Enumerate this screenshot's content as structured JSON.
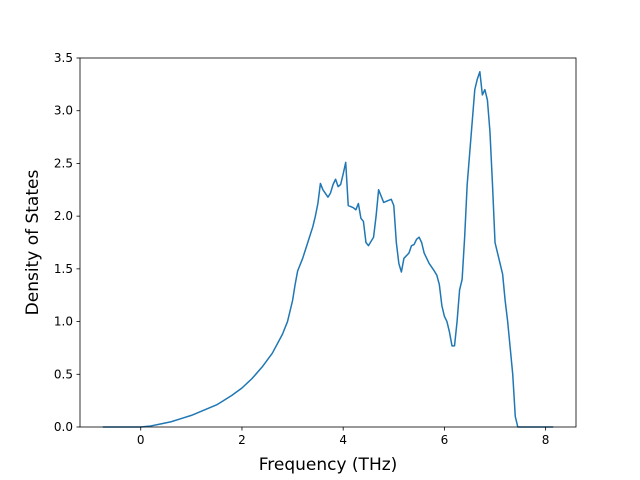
{
  "chart_data": {
    "type": "line",
    "title": "",
    "xlabel": "Frequency (THz)",
    "ylabel": "Density of States",
    "xlim": [
      -1.2,
      8.6
    ],
    "ylim": [
      0.0,
      3.5
    ],
    "xticks": [
      0,
      2,
      4,
      6,
      8
    ],
    "xtick_labels": [
      "0",
      "2",
      "4",
      "6",
      "8"
    ],
    "yticks": [
      0.0,
      0.5,
      1.0,
      1.5,
      2.0,
      2.5,
      3.0,
      3.5
    ],
    "ytick_labels": [
      "0.0",
      "0.5",
      "1.0",
      "1.5",
      "2.0",
      "2.5",
      "3.0",
      "3.5"
    ],
    "grid": false,
    "line_color": "#1f77b4",
    "series": [
      {
        "x": [
          -0.75,
          -0.5,
          -0.2,
          0.0,
          0.2,
          0.4,
          0.6,
          0.8,
          1.0,
          1.2,
          1.4,
          1.5,
          1.6,
          1.8,
          2.0,
          2.2,
          2.4,
          2.6,
          2.8,
          2.9,
          3.0,
          3.05,
          3.1,
          3.2,
          3.3,
          3.4,
          3.45,
          3.5,
          3.55,
          3.6,
          3.7,
          3.75,
          3.8,
          3.85,
          3.9,
          3.95,
          4.0,
          4.05,
          4.1,
          4.2,
          4.25,
          4.3,
          4.35,
          4.4,
          4.45,
          4.5,
          4.6,
          4.65,
          4.7,
          4.8,
          4.9,
          4.95,
          5.0,
          5.05,
          5.1,
          5.15,
          5.2,
          5.3,
          5.35,
          5.4,
          5.45,
          5.5,
          5.55,
          5.6,
          5.7,
          5.8,
          5.85,
          5.9,
          5.95,
          6.0,
          6.05,
          6.1,
          6.15,
          6.2,
          6.25,
          6.3,
          6.35,
          6.4,
          6.45,
          6.5,
          6.55,
          6.6,
          6.65,
          6.7,
          6.75,
          6.8,
          6.85,
          6.9,
          6.95,
          7.0,
          7.05,
          7.1,
          7.15,
          7.2,
          7.25,
          7.3,
          7.35,
          7.4,
          7.45,
          7.5,
          7.7,
          8.0,
          8.15
        ],
        "y": [
          0.0,
          0.0,
          0.0,
          0.0,
          0.01,
          0.03,
          0.05,
          0.08,
          0.11,
          0.15,
          0.19,
          0.21,
          0.24,
          0.3,
          0.37,
          0.46,
          0.57,
          0.7,
          0.88,
          1.0,
          1.2,
          1.35,
          1.48,
          1.6,
          1.75,
          1.9,
          2.0,
          2.12,
          2.31,
          2.25,
          2.18,
          2.22,
          2.3,
          2.35,
          2.28,
          2.3,
          2.4,
          2.51,
          2.1,
          2.08,
          2.06,
          2.12,
          1.98,
          1.95,
          1.75,
          1.72,
          1.8,
          2.0,
          2.25,
          2.13,
          2.15,
          2.16,
          2.1,
          1.75,
          1.55,
          1.47,
          1.6,
          1.65,
          1.72,
          1.73,
          1.78,
          1.8,
          1.75,
          1.65,
          1.55,
          1.48,
          1.44,
          1.35,
          1.15,
          1.05,
          1.0,
          0.9,
          0.77,
          0.77,
          1.0,
          1.3,
          1.4,
          1.8,
          2.3,
          2.6,
          2.9,
          3.2,
          3.3,
          3.37,
          3.15,
          3.2,
          3.1,
          2.8,
          2.3,
          1.75,
          1.65,
          1.55,
          1.45,
          1.2,
          1.0,
          0.75,
          0.5,
          0.1,
          0.0,
          0.0,
          0.0,
          0.0,
          0.0
        ]
      }
    ]
  }
}
